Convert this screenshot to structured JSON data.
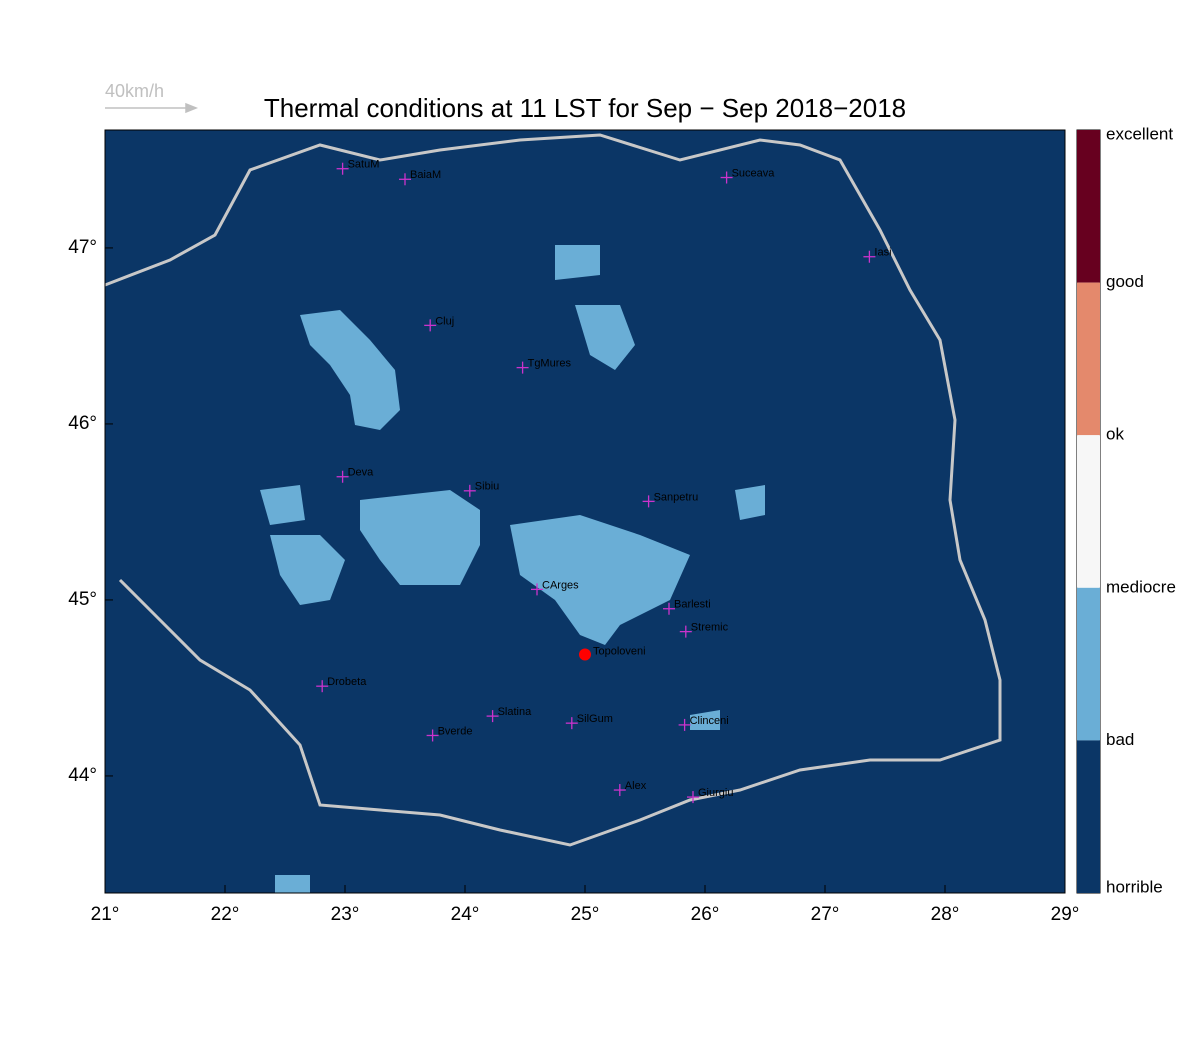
{
  "chart_data": {
    "type": "map",
    "title": "Thermal conditions at 11 LST for Sep − Sep  2018−2018",
    "wind_scale_label": "40km/h",
    "xlim": [
      21,
      29
    ],
    "ylim": [
      43.335,
      47.67
    ],
    "xticks": [
      {
        "value": 21,
        "label": "21°"
      },
      {
        "value": 22,
        "label": "22°"
      },
      {
        "value": 23,
        "label": "23°"
      },
      {
        "value": 24,
        "label": "24°"
      },
      {
        "value": 25,
        "label": "25°"
      },
      {
        "value": 26,
        "label": "26°"
      },
      {
        "value": 27,
        "label": "27°"
      },
      {
        "value": 28,
        "label": "28°"
      },
      {
        "value": 29,
        "label": "29°"
      }
    ],
    "yticks": [
      {
        "value": 44,
        "label": "44°"
      },
      {
        "value": 45,
        "label": "45°"
      },
      {
        "value": 46,
        "label": "46°"
      },
      {
        "value": 47,
        "label": "47°"
      }
    ],
    "place_color": "#cc33cc",
    "places": [
      {
        "name": "SatuM",
        "lon": 22.98,
        "lat": 47.45
      },
      {
        "name": "BaiaM",
        "lon": 23.5,
        "lat": 47.39
      },
      {
        "name": "Suceava",
        "lon": 26.18,
        "lat": 47.4
      },
      {
        "name": "Iasi",
        "lon": 27.37,
        "lat": 46.95
      },
      {
        "name": "Cluj",
        "lon": 23.71,
        "lat": 46.56
      },
      {
        "name": "TgMures",
        "lon": 24.48,
        "lat": 46.32
      },
      {
        "name": "Deva",
        "lon": 22.98,
        "lat": 45.7
      },
      {
        "name": "Sibiu",
        "lon": 24.04,
        "lat": 45.62
      },
      {
        "name": "Sanpetru",
        "lon": 25.53,
        "lat": 45.56
      },
      {
        "name": "CArges",
        "lon": 24.6,
        "lat": 45.06
      },
      {
        "name": "Barlesti",
        "lon": 25.7,
        "lat": 44.95
      },
      {
        "name": "Stremic",
        "lon": 25.84,
        "lat": 44.82
      },
      {
        "name": "Drobeta",
        "lon": 22.81,
        "lat": 44.51
      },
      {
        "name": "Slatina",
        "lon": 24.23,
        "lat": 44.34
      },
      {
        "name": "SilGum",
        "lon": 24.89,
        "lat": 44.3
      },
      {
        "name": "Bverde",
        "lon": 23.73,
        "lat": 44.23
      },
      {
        "name": "Clinceni",
        "lon": 25.83,
        "lat": 44.29
      },
      {
        "name": "Alex",
        "lon": 25.29,
        "lat": 43.92
      },
      {
        "name": "Giurgiu",
        "lon": 25.9,
        "lat": 43.88
      }
    ],
    "highlight": {
      "name": "Topoloveni",
      "lon": 25.0,
      "lat": 44.69,
      "color": "#ff0000"
    },
    "colorbar": {
      "labels": [
        "excellent",
        "good",
        "ok",
        "mediocre",
        "bad",
        "horrible"
      ],
      "colors": [
        "#67001f",
        "#e4896c",
        "#f7f7f7",
        "#6aaed6",
        "#0b3666"
      ]
    }
  }
}
